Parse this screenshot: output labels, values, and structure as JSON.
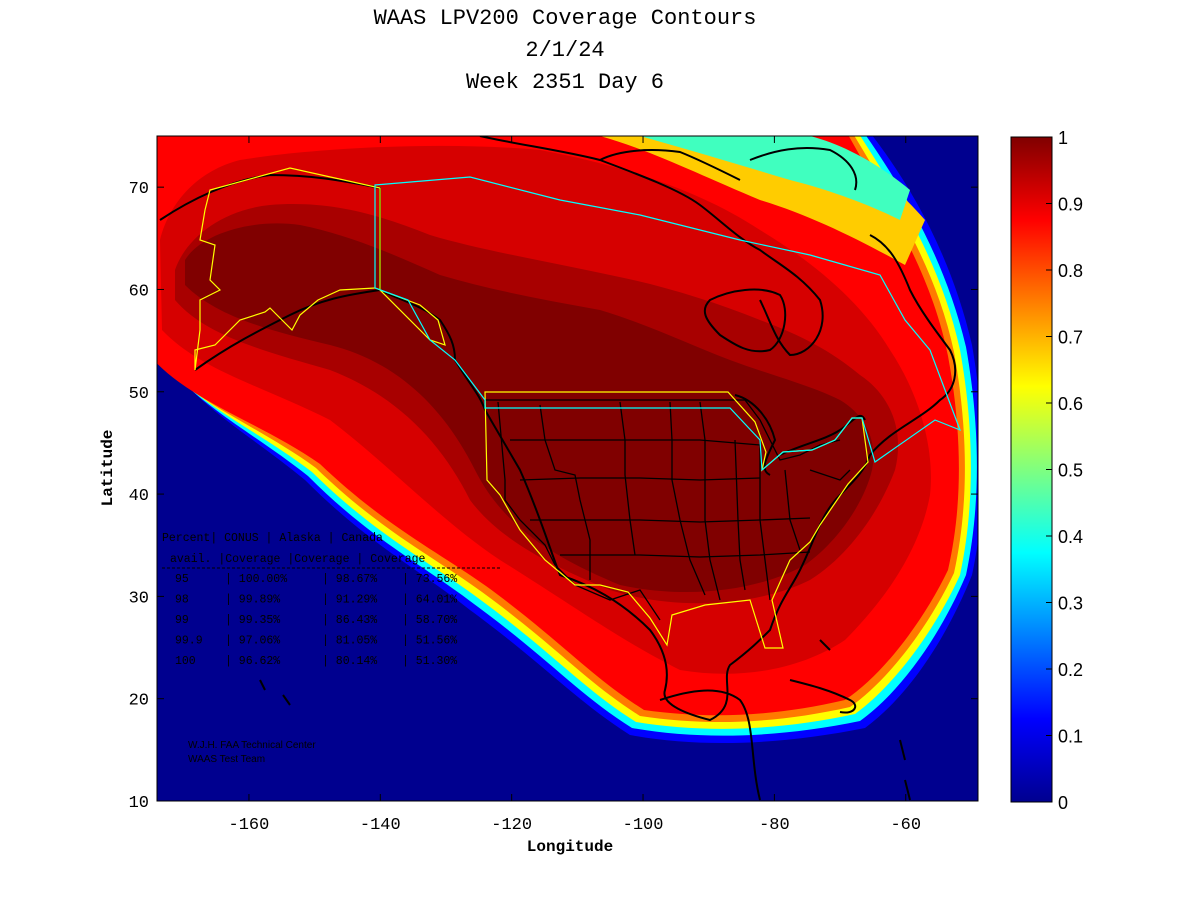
{
  "title": {
    "line1": "WAAS LPV200 Coverage Contours",
    "line2": "2/1/24",
    "line3": "Week 2351 Day 6"
  },
  "chart_data": {
    "type": "heatmap",
    "xlabel": "Longitude",
    "ylabel": "Latitude",
    "xlim": [
      -174,
      -49
    ],
    "ylim": [
      10,
      75
    ],
    "x_ticks": [
      -160,
      -140,
      -120,
      -100,
      -80,
      -60
    ],
    "y_ticks": [
      10,
      20,
      30,
      40,
      50,
      60,
      70
    ],
    "colorbar": {
      "range": [
        0,
        1
      ],
      "ticks": [
        "0",
        "0.1",
        "0.2",
        "0.3",
        "0.4",
        "0.5",
        "0.6",
        "0.7",
        "0.8",
        "0.9",
        "1"
      ],
      "colormap": "jet"
    },
    "coverage_table": {
      "header_row1": [
        "Percent",
        "CONUS",
        "Alaska",
        "Canada"
      ],
      "header_row2": [
        "avail.",
        "Coverage",
        "Coverage",
        "Coverage"
      ],
      "rows": [
        [
          "95",
          "100.00%",
          "98.67%",
          "73.56%"
        ],
        [
          "98",
          "99.89%",
          "91.29%",
          "64.01%"
        ],
        [
          "99",
          "99.35%",
          "86.43%",
          "58.70%"
        ],
        [
          "99.9",
          "97.06%",
          "81.05%",
          "51.56%"
        ],
        [
          "100",
          "96.62%",
          "80.14%",
          "51.30%"
        ]
      ]
    },
    "credit": [
      "W.J.H. FAA Technical Center",
      "WAAS Test Team"
    ]
  },
  "colors": {
    "ocean_zero": "#00008f",
    "max_coverage": "#800000",
    "conus_boundary": "#ffff00",
    "canada_boundary": "#00ffff"
  }
}
